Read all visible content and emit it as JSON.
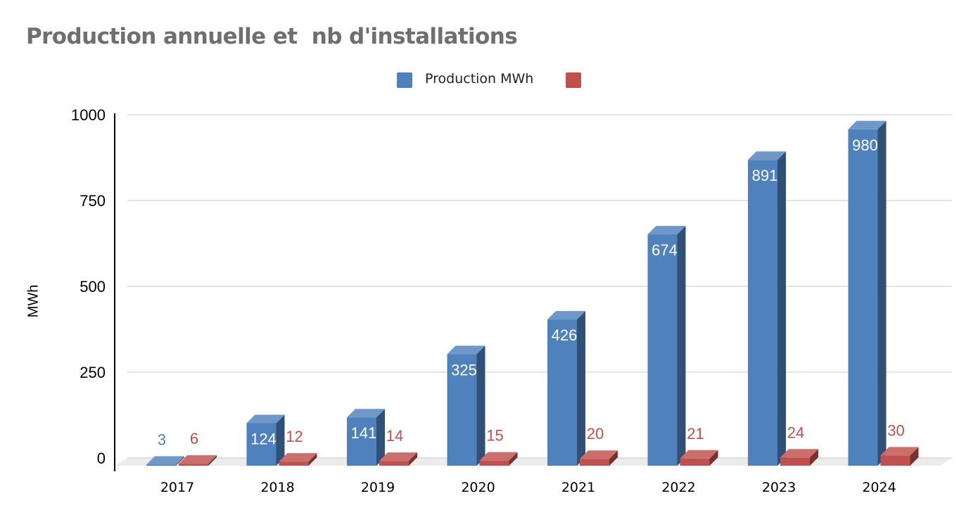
{
  "chart_data": {
    "type": "bar",
    "title": "Production annuelle et  nb d'installations",
    "ylabel": "MWh",
    "xlabel": "",
    "ylim": [
      0,
      1000
    ],
    "yticks": [
      0,
      250,
      500,
      750,
      1000
    ],
    "grid": true,
    "legend_position": "top-center",
    "style": "3d",
    "categories": [
      "2017",
      "2018",
      "2019",
      "2020",
      "2021",
      "2022",
      "2023",
      "2024"
    ],
    "series": [
      {
        "name": "Production MWh",
        "color": "#4f81bd",
        "values": [
          3,
          124,
          141,
          325,
          426,
          674,
          891,
          980
        ]
      },
      {
        "name": "",
        "color": "#c0504d",
        "values": [
          6,
          12,
          14,
          15,
          20,
          21,
          24,
          30
        ]
      }
    ]
  }
}
